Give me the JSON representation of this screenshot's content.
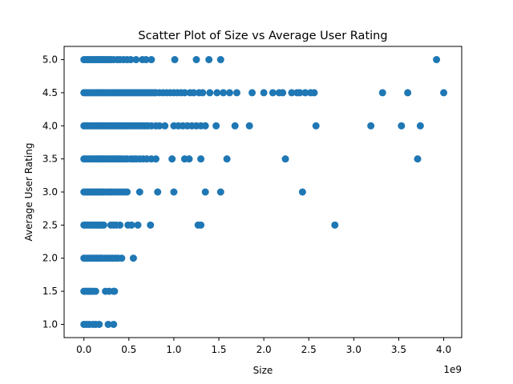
{
  "chart_data": {
    "type": "scatter",
    "title": "Scatter Plot of Size vs Average User Rating",
    "xlabel": "Size",
    "ylabel": "Average User Rating",
    "x_offset_label": "1e9",
    "xlim": [
      -0.22,
      4.2
    ],
    "ylim": [
      0.8,
      5.2
    ],
    "x_ticks": [
      0.0,
      0.5,
      1.0,
      1.5,
      2.0,
      2.5,
      3.0,
      3.5,
      4.0
    ],
    "x_tick_labels": [
      "0.0",
      "0.5",
      "1.0",
      "1.5",
      "2.0",
      "2.5",
      "3.0",
      "3.5",
      "4.0"
    ],
    "y_ticks": [
      1.0,
      1.5,
      2.0,
      2.5,
      3.0,
      3.5,
      4.0,
      4.5,
      5.0
    ],
    "y_tick_labels": [
      "1.0",
      "1.5",
      "2.0",
      "2.5",
      "3.0",
      "3.5",
      "4.0",
      "4.5",
      "5.0"
    ],
    "marker_color": "#1f77b4",
    "grid": false,
    "legend": "none",
    "series": [
      {
        "values": [
          [
            0.0,
            5.0
          ],
          [
            0.02,
            5.0
          ],
          [
            0.04,
            5.0
          ],
          [
            0.06,
            5.0
          ],
          [
            0.08,
            5.0
          ],
          [
            0.1,
            5.0
          ],
          [
            0.12,
            5.0
          ],
          [
            0.14,
            5.0
          ],
          [
            0.16,
            5.0
          ],
          [
            0.18,
            5.0
          ],
          [
            0.2,
            5.0
          ],
          [
            0.22,
            5.0
          ],
          [
            0.24,
            5.0
          ],
          [
            0.26,
            5.0
          ],
          [
            0.28,
            5.0
          ],
          [
            0.3,
            5.0
          ],
          [
            0.33,
            5.0
          ],
          [
            0.37,
            5.0
          ],
          [
            0.4,
            5.0
          ],
          [
            0.44,
            5.0
          ],
          [
            0.48,
            5.0
          ],
          [
            0.52,
            5.0
          ],
          [
            0.58,
            5.0
          ],
          [
            0.65,
            5.0
          ],
          [
            0.69,
            5.0
          ],
          [
            0.75,
            5.0
          ],
          [
            1.01,
            5.0
          ],
          [
            1.25,
            5.0
          ],
          [
            1.39,
            5.0
          ],
          [
            1.52,
            5.0
          ],
          [
            3.92,
            5.0
          ],
          [
            0.0,
            4.5
          ],
          [
            0.02,
            4.5
          ],
          [
            0.04,
            4.5
          ],
          [
            0.06,
            4.5
          ],
          [
            0.08,
            4.5
          ],
          [
            0.1,
            4.5
          ],
          [
            0.12,
            4.5
          ],
          [
            0.14,
            4.5
          ],
          [
            0.16,
            4.5
          ],
          [
            0.18,
            4.5
          ],
          [
            0.2,
            4.5
          ],
          [
            0.22,
            4.5
          ],
          [
            0.24,
            4.5
          ],
          [
            0.26,
            4.5
          ],
          [
            0.28,
            4.5
          ],
          [
            0.3,
            4.5
          ],
          [
            0.32,
            4.5
          ],
          [
            0.34,
            4.5
          ],
          [
            0.36,
            4.5
          ],
          [
            0.38,
            4.5
          ],
          [
            0.4,
            4.5
          ],
          [
            0.42,
            4.5
          ],
          [
            0.44,
            4.5
          ],
          [
            0.46,
            4.5
          ],
          [
            0.48,
            4.5
          ],
          [
            0.5,
            4.5
          ],
          [
            0.52,
            4.5
          ],
          [
            0.54,
            4.5
          ],
          [
            0.56,
            4.5
          ],
          [
            0.58,
            4.5
          ],
          [
            0.6,
            4.5
          ],
          [
            0.62,
            4.5
          ],
          [
            0.64,
            4.5
          ],
          [
            0.66,
            4.5
          ],
          [
            0.68,
            4.5
          ],
          [
            0.7,
            4.5
          ],
          [
            0.72,
            4.5
          ],
          [
            0.74,
            4.5
          ],
          [
            0.76,
            4.5
          ],
          [
            0.78,
            4.5
          ],
          [
            0.8,
            4.5
          ],
          [
            0.84,
            4.5
          ],
          [
            0.88,
            4.5
          ],
          [
            0.92,
            4.5
          ],
          [
            0.96,
            4.5
          ],
          [
            1.0,
            4.5
          ],
          [
            1.04,
            4.5
          ],
          [
            1.08,
            4.5
          ],
          [
            1.12,
            4.5
          ],
          [
            1.18,
            4.5
          ],
          [
            1.22,
            4.5
          ],
          [
            1.28,
            4.5
          ],
          [
            1.32,
            4.5
          ],
          [
            1.4,
            4.5
          ],
          [
            1.48,
            4.5
          ],
          [
            1.55,
            4.5
          ],
          [
            1.62,
            4.5
          ],
          [
            1.7,
            4.5
          ],
          [
            1.87,
            4.5
          ],
          [
            2.0,
            4.5
          ],
          [
            2.1,
            4.5
          ],
          [
            2.17,
            4.5
          ],
          [
            2.21,
            4.5
          ],
          [
            2.31,
            4.5
          ],
          [
            2.37,
            4.5
          ],
          [
            2.4,
            4.5
          ],
          [
            2.46,
            4.5
          ],
          [
            2.52,
            4.5
          ],
          [
            2.56,
            4.5
          ],
          [
            3.32,
            4.5
          ],
          [
            3.6,
            4.5
          ],
          [
            4.0,
            4.5
          ],
          [
            0.0,
            4.0
          ],
          [
            0.02,
            4.0
          ],
          [
            0.04,
            4.0
          ],
          [
            0.06,
            4.0
          ],
          [
            0.08,
            4.0
          ],
          [
            0.1,
            4.0
          ],
          [
            0.12,
            4.0
          ],
          [
            0.14,
            4.0
          ],
          [
            0.16,
            4.0
          ],
          [
            0.18,
            4.0
          ],
          [
            0.2,
            4.0
          ],
          [
            0.22,
            4.0
          ],
          [
            0.24,
            4.0
          ],
          [
            0.26,
            4.0
          ],
          [
            0.28,
            4.0
          ],
          [
            0.3,
            4.0
          ],
          [
            0.32,
            4.0
          ],
          [
            0.34,
            4.0
          ],
          [
            0.36,
            4.0
          ],
          [
            0.38,
            4.0
          ],
          [
            0.4,
            4.0
          ],
          [
            0.42,
            4.0
          ],
          [
            0.44,
            4.0
          ],
          [
            0.46,
            4.0
          ],
          [
            0.48,
            4.0
          ],
          [
            0.5,
            4.0
          ],
          [
            0.53,
            4.0
          ],
          [
            0.56,
            4.0
          ],
          [
            0.59,
            4.0
          ],
          [
            0.62,
            4.0
          ],
          [
            0.65,
            4.0
          ],
          [
            0.68,
            4.0
          ],
          [
            0.71,
            4.0
          ],
          [
            0.75,
            4.0
          ],
          [
            0.8,
            4.0
          ],
          [
            0.84,
            4.0
          ],
          [
            0.9,
            4.0
          ],
          [
            1.0,
            4.0
          ],
          [
            1.05,
            4.0
          ],
          [
            1.1,
            4.0
          ],
          [
            1.15,
            4.0
          ],
          [
            1.2,
            4.0
          ],
          [
            1.25,
            4.0
          ],
          [
            1.3,
            4.0
          ],
          [
            1.35,
            4.0
          ],
          [
            1.47,
            4.0
          ],
          [
            1.68,
            4.0
          ],
          [
            1.84,
            4.0
          ],
          [
            2.58,
            4.0
          ],
          [
            3.19,
            4.0
          ],
          [
            3.53,
            4.0
          ],
          [
            3.74,
            4.0
          ],
          [
            0.0,
            3.5
          ],
          [
            0.02,
            3.5
          ],
          [
            0.04,
            3.5
          ],
          [
            0.06,
            3.5
          ],
          [
            0.08,
            3.5
          ],
          [
            0.1,
            3.5
          ],
          [
            0.12,
            3.5
          ],
          [
            0.14,
            3.5
          ],
          [
            0.16,
            3.5
          ],
          [
            0.18,
            3.5
          ],
          [
            0.2,
            3.5
          ],
          [
            0.22,
            3.5
          ],
          [
            0.24,
            3.5
          ],
          [
            0.26,
            3.5
          ],
          [
            0.28,
            3.5
          ],
          [
            0.3,
            3.5
          ],
          [
            0.32,
            3.5
          ],
          [
            0.34,
            3.5
          ],
          [
            0.36,
            3.5
          ],
          [
            0.38,
            3.5
          ],
          [
            0.4,
            3.5
          ],
          [
            0.42,
            3.5
          ],
          [
            0.45,
            3.5
          ],
          [
            0.48,
            3.5
          ],
          [
            0.52,
            3.5
          ],
          [
            0.55,
            3.5
          ],
          [
            0.58,
            3.5
          ],
          [
            0.62,
            3.5
          ],
          [
            0.66,
            3.5
          ],
          [
            0.7,
            3.5
          ],
          [
            0.75,
            3.5
          ],
          [
            0.8,
            3.5
          ],
          [
            0.98,
            3.5
          ],
          [
            1.12,
            3.5
          ],
          [
            1.17,
            3.5
          ],
          [
            1.3,
            3.5
          ],
          [
            1.59,
            3.5
          ],
          [
            2.24,
            3.5
          ],
          [
            3.71,
            3.5
          ],
          [
            0.0,
            3.0
          ],
          [
            0.02,
            3.0
          ],
          [
            0.04,
            3.0
          ],
          [
            0.06,
            3.0
          ],
          [
            0.08,
            3.0
          ],
          [
            0.1,
            3.0
          ],
          [
            0.12,
            3.0
          ],
          [
            0.14,
            3.0
          ],
          [
            0.16,
            3.0
          ],
          [
            0.18,
            3.0
          ],
          [
            0.2,
            3.0
          ],
          [
            0.22,
            3.0
          ],
          [
            0.25,
            3.0
          ],
          [
            0.28,
            3.0
          ],
          [
            0.3,
            3.0
          ],
          [
            0.33,
            3.0
          ],
          [
            0.36,
            3.0
          ],
          [
            0.39,
            3.0
          ],
          [
            0.42,
            3.0
          ],
          [
            0.45,
            3.0
          ],
          [
            0.48,
            3.0
          ],
          [
            0.62,
            3.0
          ],
          [
            0.82,
            3.0
          ],
          [
            1.0,
            3.0
          ],
          [
            1.35,
            3.0
          ],
          [
            1.52,
            3.0
          ],
          [
            2.43,
            3.0
          ],
          [
            0.0,
            2.5
          ],
          [
            0.02,
            2.5
          ],
          [
            0.04,
            2.5
          ],
          [
            0.06,
            2.5
          ],
          [
            0.08,
            2.5
          ],
          [
            0.1,
            2.5
          ],
          [
            0.12,
            2.5
          ],
          [
            0.14,
            2.5
          ],
          [
            0.16,
            2.5
          ],
          [
            0.18,
            2.5
          ],
          [
            0.2,
            2.5
          ],
          [
            0.22,
            2.5
          ],
          [
            0.3,
            2.5
          ],
          [
            0.33,
            2.5
          ],
          [
            0.36,
            2.5
          ],
          [
            0.4,
            2.5
          ],
          [
            0.49,
            2.5
          ],
          [
            0.53,
            2.5
          ],
          [
            0.6,
            2.5
          ],
          [
            0.74,
            2.5
          ],
          [
            1.27,
            2.5
          ],
          [
            1.3,
            2.5
          ],
          [
            2.79,
            2.5
          ],
          [
            0.0,
            2.0
          ],
          [
            0.02,
            2.0
          ],
          [
            0.04,
            2.0
          ],
          [
            0.06,
            2.0
          ],
          [
            0.08,
            2.0
          ],
          [
            0.1,
            2.0
          ],
          [
            0.12,
            2.0
          ],
          [
            0.14,
            2.0
          ],
          [
            0.16,
            2.0
          ],
          [
            0.18,
            2.0
          ],
          [
            0.2,
            2.0
          ],
          [
            0.23,
            2.0
          ],
          [
            0.26,
            2.0
          ],
          [
            0.29,
            2.0
          ],
          [
            0.32,
            2.0
          ],
          [
            0.35,
            2.0
          ],
          [
            0.38,
            2.0
          ],
          [
            0.42,
            2.0
          ],
          [
            0.55,
            2.0
          ],
          [
            0.0,
            1.5
          ],
          [
            0.02,
            1.5
          ],
          [
            0.04,
            1.5
          ],
          [
            0.06,
            1.5
          ],
          [
            0.08,
            1.5
          ],
          [
            0.1,
            1.5
          ],
          [
            0.13,
            1.5
          ],
          [
            0.24,
            1.5
          ],
          [
            0.28,
            1.5
          ],
          [
            0.33,
            1.5
          ],
          [
            0.34,
            1.5
          ],
          [
            0.0,
            1.0
          ],
          [
            0.03,
            1.0
          ],
          [
            0.06,
            1.0
          ],
          [
            0.1,
            1.0
          ],
          [
            0.13,
            1.0
          ],
          [
            0.17,
            1.0
          ],
          [
            0.27,
            1.0
          ],
          [
            0.33,
            1.0
          ]
        ]
      }
    ]
  }
}
